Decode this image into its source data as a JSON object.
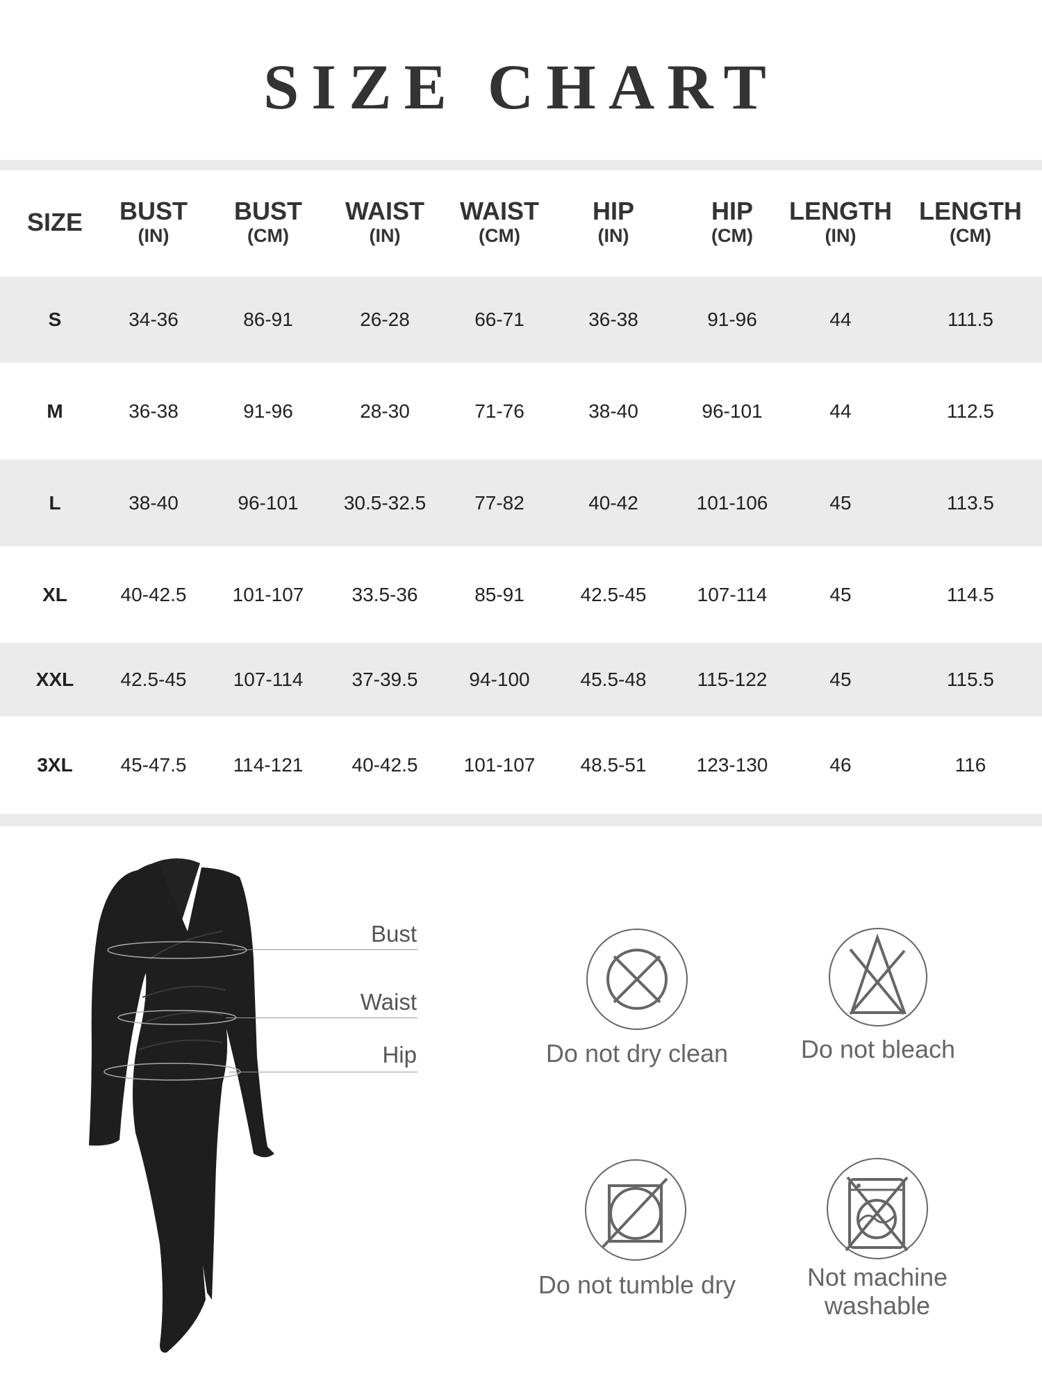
{
  "title": "SIZE CHART",
  "table": {
    "headers": [
      {
        "main": "SIZE",
        "unit": ""
      },
      {
        "main": "BUST",
        "unit": "(IN)"
      },
      {
        "main": "BUST",
        "unit": "(CM)"
      },
      {
        "main": "WAIST",
        "unit": "(IN)"
      },
      {
        "main": "WAIST",
        "unit": "(CM)"
      },
      {
        "main": "HIP",
        "unit": "(IN)"
      },
      {
        "main": "HIP",
        "unit": "(CM)"
      },
      {
        "main": "LENGTH",
        "unit": "(IN)"
      },
      {
        "main": "LENGTH",
        "unit": "(CM)"
      }
    ],
    "rows": [
      [
        "S",
        "34-36",
        "86-91",
        "26-28",
        "66-71",
        "36-38",
        "91-96",
        "44",
        "111.5"
      ],
      [
        "M",
        "36-38",
        "91-96",
        "28-30",
        "71-76",
        "38-40",
        "96-101",
        "44",
        "112.5"
      ],
      [
        "L",
        "38-40",
        "96-101",
        "30.5-32.5",
        "77-82",
        "40-42",
        "101-106",
        "45",
        "113.5"
      ],
      [
        "XL",
        "40-42.5",
        "101-107",
        "33.5-36",
        "85-91",
        "42.5-45",
        "107-114",
        "45",
        "114.5"
      ],
      [
        "XXL",
        "42.5-45",
        "107-114",
        "37-39.5",
        "94-100",
        "45.5-48",
        "115-122",
        "45",
        "115.5"
      ],
      [
        "3XL",
        "45-47.5",
        "114-121",
        "40-42.5",
        "101-107",
        "48.5-51",
        "123-130",
        "46",
        "116"
      ]
    ]
  },
  "measurements": [
    "Bust",
    "Waist",
    "Hip"
  ],
  "care": [
    {
      "label": "Do not dry clean",
      "icon": "no-dry-clean-icon"
    },
    {
      "label": "Do not bleach",
      "icon": "no-bleach-icon"
    },
    {
      "label": "Do not tumble dry",
      "icon": "no-tumble-dry-icon"
    },
    {
      "label_line1": "Not machine",
      "label_line2": "washable",
      "icon": "no-machine-wash-icon"
    }
  ],
  "colors": {
    "band": "#ebebeb",
    "text": "#333333",
    "icon": "#666666"
  }
}
